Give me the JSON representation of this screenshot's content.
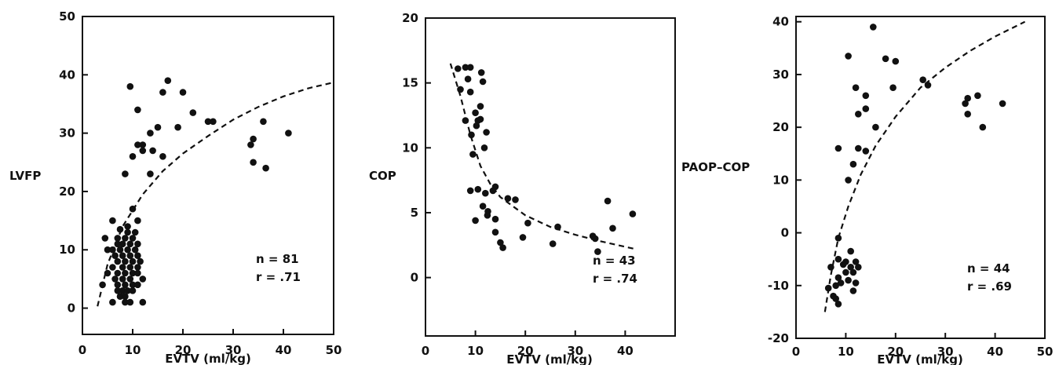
{
  "chart_data": [
    {
      "type": "scatter",
      "xlabel": "EVTV (ml/kg)",
      "ylabel": "LVFP",
      "xlim": [
        0,
        50
      ],
      "ylim": [
        -4.5,
        50
      ],
      "x_ticks": [
        0,
        10,
        20,
        30,
        40,
        50
      ],
      "y_ticks": [
        0,
        10,
        20,
        30,
        40,
        50
      ],
      "annotations": [
        "n = 81",
        "r = .71"
      ],
      "points": [
        [
          9.5,
          38
        ],
        [
          17,
          39
        ],
        [
          20,
          37
        ],
        [
          16,
          37
        ],
        [
          11,
          34
        ],
        [
          22,
          33.5
        ],
        [
          25,
          32
        ],
        [
          26,
          32
        ],
        [
          36,
          32
        ],
        [
          19,
          31
        ],
        [
          15,
          31
        ],
        [
          13.5,
          30
        ],
        [
          41,
          30
        ],
        [
          34,
          29
        ],
        [
          33.5,
          28
        ],
        [
          11,
          28
        ],
        [
          12,
          28
        ],
        [
          12,
          27
        ],
        [
          14,
          27
        ],
        [
          10,
          26
        ],
        [
          16,
          26
        ],
        [
          34,
          25
        ],
        [
          36.5,
          24
        ],
        [
          8.5,
          23
        ],
        [
          13.5,
          23
        ],
        [
          10,
          17
        ],
        [
          11,
          15
        ],
        [
          6,
          15
        ],
        [
          9,
          14
        ],
        [
          7.5,
          13.5
        ],
        [
          4.5,
          12
        ],
        [
          8.5,
          12
        ],
        [
          10,
          12
        ],
        [
          7,
          11
        ],
        [
          8,
          11
        ],
        [
          9.5,
          11
        ],
        [
          11,
          11
        ],
        [
          5,
          10
        ],
        [
          6,
          10
        ],
        [
          7.5,
          10
        ],
        [
          9,
          10
        ],
        [
          10.5,
          10
        ],
        [
          6.5,
          9
        ],
        [
          8,
          9
        ],
        [
          9.5,
          9
        ],
        [
          11,
          9
        ],
        [
          7,
          8
        ],
        [
          8.5,
          8
        ],
        [
          10,
          8
        ],
        [
          11.5,
          8
        ],
        [
          6,
          7
        ],
        [
          8,
          7
        ],
        [
          9.5,
          7
        ],
        [
          11,
          7
        ],
        [
          5,
          6
        ],
        [
          7,
          6
        ],
        [
          8.5,
          6
        ],
        [
          10,
          6
        ],
        [
          11,
          6
        ],
        [
          6.5,
          5
        ],
        [
          8,
          5
        ],
        [
          9.5,
          5
        ],
        [
          12,
          5
        ],
        [
          4,
          4
        ],
        [
          7,
          4
        ],
        [
          8.5,
          4
        ],
        [
          10,
          4
        ],
        [
          11,
          4
        ],
        [
          7,
          3
        ],
        [
          8,
          3
        ],
        [
          9,
          3
        ],
        [
          10,
          3
        ],
        [
          7.5,
          2
        ],
        [
          8.5,
          2
        ],
        [
          6,
          1
        ],
        [
          8.5,
          1
        ],
        [
          9.5,
          1
        ],
        [
          12,
          1
        ],
        [
          7,
          12
        ],
        [
          10.5,
          13
        ],
        [
          9,
          13
        ]
      ],
      "fit_curve": [
        [
          3,
          0.3
        ],
        [
          5,
          7.5
        ],
        [
          8,
          14
        ],
        [
          12,
          19.5
        ],
        [
          16,
          23.5
        ],
        [
          20,
          26.5
        ],
        [
          25,
          29.5
        ],
        [
          30,
          32.3
        ],
        [
          35,
          34.5
        ],
        [
          40,
          36.3
        ],
        [
          45,
          37.7
        ],
        [
          50,
          38.7
        ]
      ]
    },
    {
      "type": "scatter",
      "xlabel": "EVTV (ml/kg)",
      "ylabel": "COP",
      "xlim": [
        0,
        50
      ],
      "ylim": [
        -4.5,
        20
      ],
      "x_ticks": [
        0,
        10,
        20,
        30,
        40,
        50
      ],
      "x_tick_labels": [
        "0",
        "10",
        "20",
        "30",
        "40",
        ""
      ],
      "y_ticks": [
        0,
        5,
        10,
        15,
        20
      ],
      "annotations": [
        "n = 43",
        "r = .74"
      ],
      "points": [
        [
          6.5,
          16.1
        ],
        [
          8,
          16.2
        ],
        [
          9,
          16.2
        ],
        [
          11.2,
          15.8
        ],
        [
          8.5,
          15.3
        ],
        [
          11.5,
          15.1
        ],
        [
          7,
          14.5
        ],
        [
          9,
          14.3
        ],
        [
          11,
          13.2
        ],
        [
          10,
          12.7
        ],
        [
          8,
          12.1
        ],
        [
          10.5,
          12.1
        ],
        [
          11,
          12.2
        ],
        [
          10.2,
          11.7
        ],
        [
          12.2,
          11.2
        ],
        [
          9.5,
          9.5
        ],
        [
          9,
          6.7
        ],
        [
          10.5,
          6.8
        ],
        [
          12,
          6.5
        ],
        [
          14,
          7
        ],
        [
          16.5,
          6.1
        ],
        [
          18,
          6
        ],
        [
          36.5,
          5.9
        ],
        [
          11.5,
          5.5
        ],
        [
          12.5,
          5.1
        ],
        [
          10,
          4.4
        ],
        [
          14,
          4.5
        ],
        [
          20.5,
          4.2
        ],
        [
          41.5,
          4.9
        ],
        [
          12.4,
          4.8
        ],
        [
          26.5,
          3.9
        ],
        [
          37.5,
          3.8
        ],
        [
          14,
          3.5
        ],
        [
          19.5,
          3.1
        ],
        [
          33.5,
          3.2
        ],
        [
          34,
          3.0
        ],
        [
          15.5,
          2.3
        ],
        [
          25.5,
          2.6
        ],
        [
          34.5,
          2
        ],
        [
          13.5,
          6.7
        ],
        [
          9.2,
          11
        ],
        [
          11.8,
          10
        ],
        [
          15,
          2.7
        ]
      ],
      "fit_curve": [
        [
          5,
          16.5
        ],
        [
          7,
          14
        ],
        [
          9,
          11
        ],
        [
          11,
          8.6
        ],
        [
          13,
          7.2
        ],
        [
          15,
          6.2
        ],
        [
          20,
          4.8
        ],
        [
          25,
          3.9
        ],
        [
          30,
          3.3
        ],
        [
          35,
          2.8
        ],
        [
          42,
          2.2
        ]
      ]
    },
    {
      "type": "scatter",
      "xlabel": "EVTV (ml/kg)",
      "ylabel": "PAOP–COP",
      "xlim": [
        0,
        50
      ],
      "ylim": [
        -20,
        41
      ],
      "x_ticks": [
        0,
        10,
        20,
        30,
        40,
        50
      ],
      "y_ticks": [
        -20,
        -10,
        0,
        10,
        20,
        30,
        40
      ],
      "annotations": [
        "n = 44",
        "r = .69"
      ],
      "points": [
        [
          15.5,
          39
        ],
        [
          10.5,
          33.5
        ],
        [
          18,
          33
        ],
        [
          20,
          32.5
        ],
        [
          25.5,
          29
        ],
        [
          26.5,
          28
        ],
        [
          12,
          27.5
        ],
        [
          19.5,
          27.5
        ],
        [
          14,
          26
        ],
        [
          34.5,
          25.5
        ],
        [
          36.5,
          26
        ],
        [
          14,
          23.5
        ],
        [
          12.5,
          22.5
        ],
        [
          34,
          24.5
        ],
        [
          41.5,
          24.5
        ],
        [
          34.5,
          22.5
        ],
        [
          16,
          20
        ],
        [
          37.5,
          20
        ],
        [
          8.5,
          16
        ],
        [
          12.5,
          16
        ],
        [
          14,
          15.5
        ],
        [
          11.5,
          13
        ],
        [
          10.5,
          10
        ],
        [
          8.5,
          -1
        ],
        [
          8.5,
          -5
        ],
        [
          11,
          -3.5
        ],
        [
          10,
          -5.5
        ],
        [
          12,
          -5.5
        ],
        [
          9.5,
          -6
        ],
        [
          7,
          -6.5
        ],
        [
          11,
          -6.5
        ],
        [
          12.5,
          -6.5
        ],
        [
          10,
          -7.5
        ],
        [
          11.5,
          -7.5
        ],
        [
          8.5,
          -8.5
        ],
        [
          10.5,
          -9
        ],
        [
          9,
          -9.5
        ],
        [
          12,
          -9.5
        ],
        [
          8,
          -10
        ],
        [
          6.5,
          -10.5
        ],
        [
          11.5,
          -11
        ],
        [
          7.5,
          -12
        ],
        [
          8,
          -12.5
        ],
        [
          8.5,
          -13.5
        ]
      ],
      "fit_curve": [
        [
          5.8,
          -15
        ],
        [
          7,
          -8
        ],
        [
          8.5,
          -1
        ],
        [
          10.5,
          5
        ],
        [
          13,
          11
        ],
        [
          16,
          16.5
        ],
        [
          20,
          22
        ],
        [
          25,
          27.5
        ],
        [
          30,
          31.3
        ],
        [
          35,
          34.5
        ],
        [
          40,
          37.2
        ],
        [
          46,
          40
        ]
      ]
    }
  ]
}
